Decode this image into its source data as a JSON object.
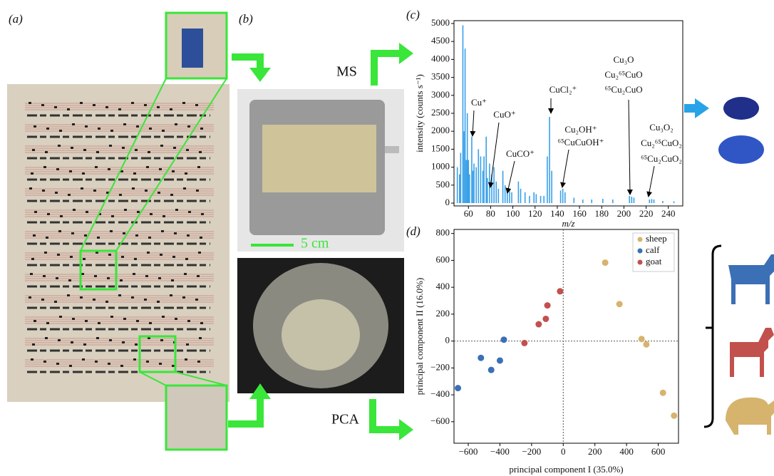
{
  "labels": {
    "a": "(a)",
    "b": "(b)",
    "c": "(c)",
    "d": "(d)",
    "ms": "MS",
    "pca": "PCA",
    "scale": "5 cm"
  },
  "chart_data": [
    {
      "type": "bar",
      "color": "#3aa0e8",
      "x_label": "m/z",
      "y_label": "intensity (counts s⁻¹)",
      "x": [
        50,
        52,
        53,
        55,
        56,
        57,
        58,
        59,
        60,
        61,
        63,
        64,
        65,
        67,
        69,
        71,
        73,
        74,
        76,
        77,
        79,
        81,
        83,
        85,
        87,
        91,
        93,
        95,
        97,
        99,
        105,
        107,
        111,
        115,
        119,
        121,
        125,
        128,
        131,
        133,
        135,
        143,
        145,
        147,
        155,
        163,
        171,
        181,
        190,
        205,
        207,
        209,
        223,
        225,
        227,
        235,
        245
      ],
      "values": [
        1000,
        800,
        1400,
        4950,
        2000,
        4300,
        1200,
        2500,
        1200,
        800,
        1850,
        900,
        1100,
        1000,
        1500,
        1300,
        900,
        1300,
        1850,
        700,
        1100,
        800,
        1000,
        600,
        400,
        900,
        500,
        400,
        400,
        300,
        600,
        400,
        300,
        200,
        300,
        250,
        200,
        200,
        1300,
        2400,
        900,
        350,
        400,
        300,
        150,
        100,
        100,
        120,
        100,
        200,
        180,
        150,
        100,
        110,
        100,
        60,
        50
      ],
      "xlim": [
        47,
        253
      ],
      "xticks": [
        60,
        80,
        100,
        120,
        140,
        160,
        180,
        200,
        220,
        240
      ],
      "ylim": [
        0,
        5000
      ],
      "yticks": [
        0,
        500,
        1000,
        1500,
        2000,
        2500,
        3000,
        3500,
        4000,
        4500,
        5000
      ],
      "annotations": [
        [
          "Cu⁺"
        ],
        [
          "CuO⁺"
        ],
        [
          "CuCO⁺"
        ],
        [
          "CuCl₂⁺"
        ],
        [
          "Cu₂OH⁺",
          "⁶⁵CuCuOH⁺"
        ],
        [
          "Cu₃O",
          "Cu₂⁶⁵CuO",
          "⁶⁵Cu₂CuO"
        ],
        [
          "Cu₃O₂",
          "Cu₂⁶⁵CuO₂",
          "⁶⁵Cu₂CuO₂"
        ]
      ]
    },
    {
      "type": "scatter",
      "x_label": "principal component I (35.0%)",
      "y_label": "principal component II (16.0%)",
      "xlim": [
        -690,
        728
      ],
      "ylim": [
        -760,
        830
      ],
      "xticks": [
        {
          "value": -600,
          "label": "−600"
        },
        {
          "value": -400,
          "label": "−400"
        },
        {
          "value": -200,
          "label": "−200"
        },
        0,
        200,
        400,
        600
      ],
      "yticks": [
        {
          "value": -600,
          "label": "−600"
        },
        {
          "value": -400,
          "label": "−400"
        },
        {
          "value": -200,
          "label": "−200"
        },
        0,
        200,
        400,
        600,
        800
      ],
      "legend": "upper right",
      "series": [
        {
          "name": "sheep",
          "color": "#d6b46e",
          "x": [
            265,
            355,
            495,
            525,
            630,
            700
          ],
          "values": [
            583,
            275,
            15,
            -25,
            -385,
            -555
          ]
        },
        {
          "name": "calf",
          "color": "#3b6fb6",
          "x": [
            -665,
            -520,
            -375,
            -400,
            -455
          ],
          "values": [
            -350,
            -125,
            10,
            -145,
            -215
          ]
        },
        {
          "name": "goat",
          "color": "#c2504d",
          "x": [
            -20,
            -100,
            -110,
            -155,
            -245
          ],
          "values": [
            370,
            265,
            165,
            125,
            -15
          ]
        }
      ]
    }
  ]
}
